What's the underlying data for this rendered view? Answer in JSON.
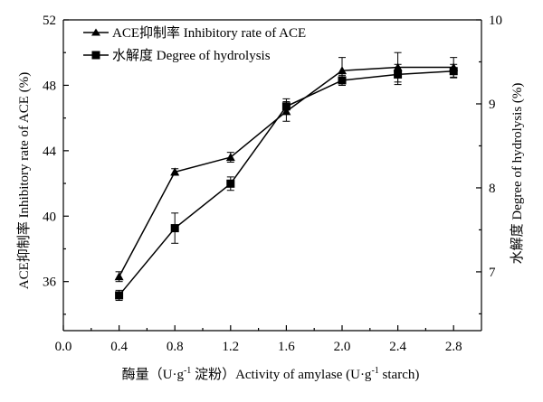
{
  "chart_data": {
    "type": "line",
    "x": [
      0.4,
      0.8,
      1.2,
      1.6,
      2.0,
      2.4,
      2.8
    ],
    "xlabel_cn": "酶量（U·g",
    "xlabel_sup1": "-1",
    "xlabel_mid": " 淀粉）Activity of amylase (U·g",
    "xlabel_sup2": "-1",
    "xlabel_end": " starch)",
    "ylabel_left": "ACE抑制率 Inhibitory rate of ACE (%)",
    "ylabel_right": "水解度 Degree of hydrolysis (%)",
    "xlim": [
      0.0,
      3.0
    ],
    "xticks": [
      "0.0",
      "0.4",
      "0.8",
      "1.2",
      "1.6",
      "2.0",
      "2.4",
      "2.8"
    ],
    "ylim_left": [
      33,
      52
    ],
    "yticks_left": [
      "36",
      "40",
      "44",
      "48",
      "52"
    ],
    "ylim_right": [
      6.3,
      10.0
    ],
    "yticks_right": [
      "7",
      "8",
      "9",
      "10"
    ],
    "grid": false,
    "legend_position": "top-left",
    "series": [
      {
        "name": "ACE抑制率 Inhibitory rate of ACE",
        "axis": "left",
        "marker": "triangle",
        "values": [
          36.3,
          42.7,
          43.6,
          46.4,
          48.9,
          49.1,
          49.1
        ],
        "errors": [
          0.3,
          0.2,
          0.3,
          0.6,
          0.8,
          0.9,
          0.6
        ]
      },
      {
        "name": "水解度 Degree of hydrolysis",
        "axis": "right",
        "marker": "square",
        "values": [
          6.72,
          7.52,
          8.05,
          8.97,
          9.28,
          9.35,
          9.39
        ],
        "errors": [
          0.06,
          0.18,
          0.08,
          0.09,
          0.06,
          0.12,
          0.08
        ]
      }
    ]
  }
}
